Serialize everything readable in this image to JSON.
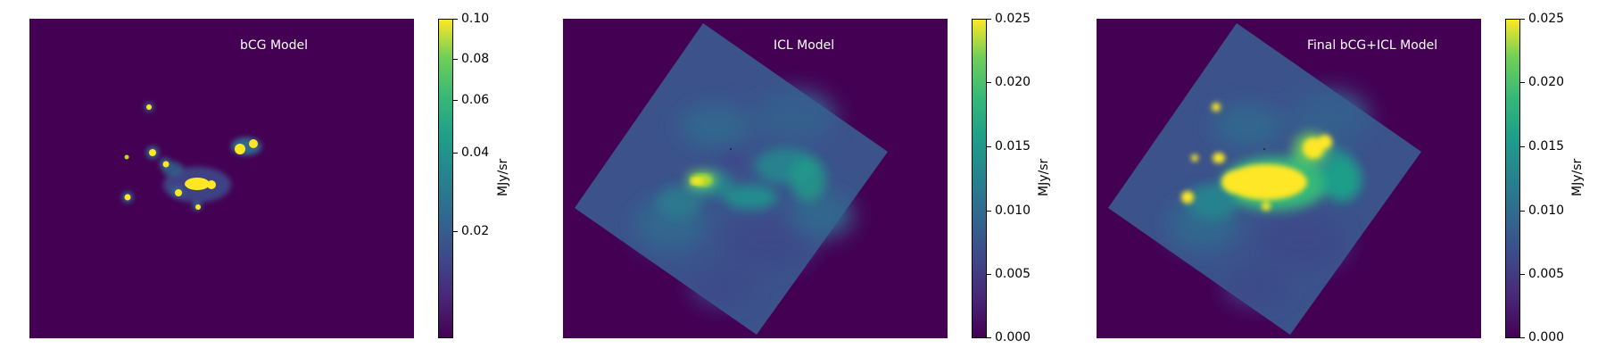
{
  "panels": [
    {
      "title": "bCG Model",
      "colorbar": {
        "label": "MJy/sr",
        "ticks": [
          "0.10",
          "0.08",
          "0.06",
          "0.04",
          "0.02"
        ]
      }
    },
    {
      "title": "ICL Model",
      "colorbar": {
        "label": "MJy/sr",
        "ticks": [
          "0.025",
          "0.020",
          "0.015",
          "0.010",
          "0.005",
          "0.000"
        ]
      }
    },
    {
      "title": "Final bCG+ICL Model",
      "colorbar": {
        "label": "MJy/sr",
        "ticks": [
          "0.025",
          "0.020",
          "0.015",
          "0.010",
          "0.005",
          "0.000"
        ]
      }
    }
  ],
  "colors": {
    "background": "#440154",
    "colormap": "viridis"
  }
}
